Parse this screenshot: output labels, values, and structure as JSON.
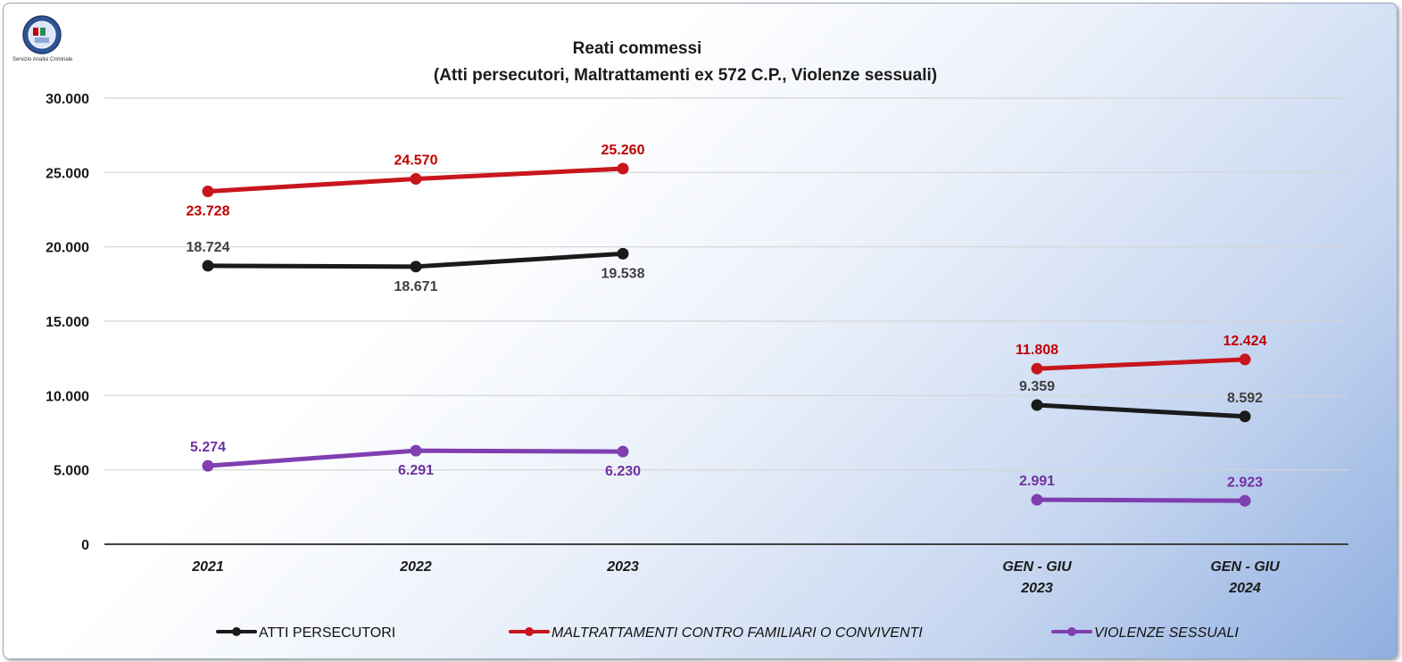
{
  "logo": {
    "caption": "Servizio Analisi Criminale"
  },
  "chart_data": {
    "type": "line",
    "title": "Reati commessi",
    "subtitle": "(Atti persecutori, Maltrattamenti ex 572 C.P., Violenze sessuali)",
    "categories": [
      "2021",
      "2022",
      "2023",
      "GEN - GIU\n2023",
      "GEN - GIU\n2024"
    ],
    "ylim": [
      0,
      30000
    ],
    "yticks": [
      0,
      5000,
      10000,
      15000,
      20000,
      25000,
      30000
    ],
    "ytick_labels": [
      "0",
      "5.000",
      "10.000",
      "15.000",
      "20.000",
      "25.000",
      "30.000"
    ],
    "grid": true,
    "legend_position": "bottom",
    "segments": [
      [
        0,
        1,
        2
      ],
      [
        3,
        4
      ]
    ],
    "series": [
      {
        "name": "ATTI PERSECUTORI",
        "color": "#1a1a1a",
        "label_color": "#404040",
        "legend_italic": false,
        "values": [
          18724,
          18671,
          19538,
          9359,
          8592
        ],
        "labels": [
          "18.724",
          "18.671",
          "19.538",
          "9.359",
          "8.592"
        ],
        "label_pos": [
          "above",
          "below",
          "below",
          "above",
          "above"
        ]
      },
      {
        "name": "MALTRATTAMENTI CONTRO FAMILIARI O CONVIVENTI",
        "color": "#c8161d",
        "label_color": "#c00000",
        "legend_italic": true,
        "values": [
          23728,
          24570,
          25260,
          11808,
          12424
        ],
        "labels": [
          "23.728",
          "24.570",
          "25.260",
          "11.808",
          "12.424"
        ],
        "label_pos": [
          "below",
          "above",
          "above",
          "above",
          "above"
        ]
      },
      {
        "name": "VIOLENZE SESSUALI",
        "color": "#7f3fb0",
        "label_color": "#7030a0",
        "legend_italic": true,
        "values": [
          5274,
          6291,
          6230,
          2991,
          2923
        ],
        "labels": [
          "5.274",
          "6.291",
          "6.230",
          "2.991",
          "2.923"
        ],
        "label_pos": [
          "above",
          "below",
          "below",
          "above",
          "above"
        ]
      }
    ]
  }
}
